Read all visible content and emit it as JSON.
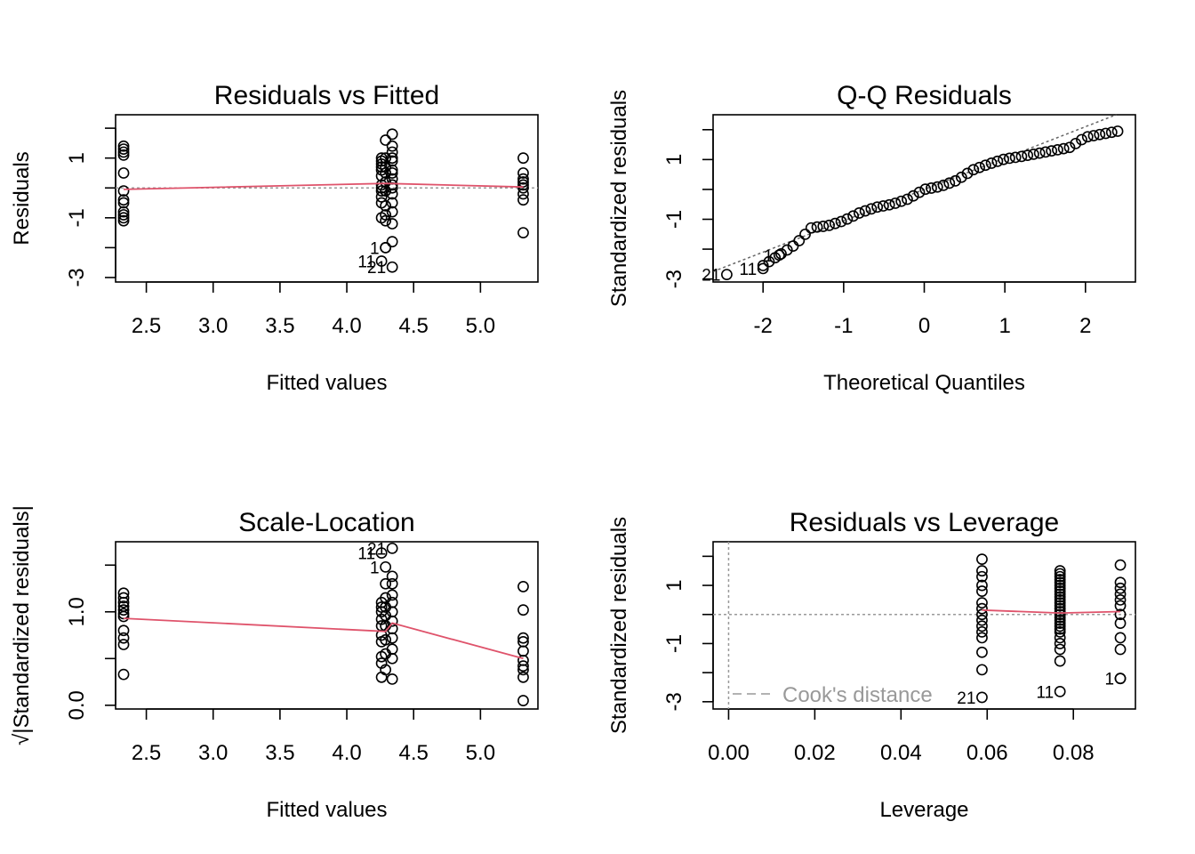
{
  "chart_data": [
    {
      "type": "scatter",
      "title": "Residuals vs Fitted",
      "xlabel": "Fitted values",
      "ylabel": "Residuals",
      "xlim": [
        2.27,
        5.43
      ],
      "ylim": [
        -3.15,
        2.45
      ],
      "xticks": [
        {
          "v": 2.5,
          "label": "2.5"
        },
        {
          "v": 3.0,
          "label": "3.0"
        },
        {
          "v": 3.5,
          "label": "3.5"
        },
        {
          "v": 4.0,
          "label": "4.0"
        },
        {
          "v": 4.5,
          "label": "4.5"
        },
        {
          "v": 5.0,
          "label": "5.0"
        }
      ],
      "yticks": [
        {
          "v": -3,
          "label": "-3"
        },
        {
          "v": -2,
          "label": ""
        },
        {
          "v": -1,
          "label": "-1"
        },
        {
          "v": 0,
          "label": ""
        },
        {
          "v": 1,
          "label": "1"
        },
        {
          "v": 2,
          "label": ""
        }
      ],
      "groups": [
        {
          "x": 2.33,
          "y": [
            1.4,
            1.3,
            1.2,
            1.1,
            0.5,
            -0.1,
            -0.4,
            -0.5,
            -0.8,
            -0.9,
            -1.0,
            -1.1
          ]
        },
        {
          "x": 4.26,
          "y": [
            1.0,
            0.9,
            0.8,
            0.7,
            0.6,
            0.4,
            0.1,
            0.0,
            -0.1,
            -0.3,
            -0.5,
            -1.0
          ]
        },
        {
          "x": 4.29,
          "y": [
            1.6,
            1.0,
            0.7,
            0.5,
            0.2,
            -0.1,
            -0.6,
            -0.9,
            -1.1,
            -2.0
          ]
        },
        {
          "x": 4.34,
          "y": [
            1.8,
            1.4,
            1.2,
            1.0,
            0.9,
            0.6,
            0.5,
            0.3,
            0.1,
            0.0,
            -0.2,
            -0.5,
            -0.8,
            -1.2,
            -1.8
          ]
        },
        {
          "x": 5.32,
          "y": [
            1.0,
            0.5,
            0.3,
            0.2,
            0.1,
            0.0,
            -0.2,
            -0.4,
            -1.5
          ]
        }
      ],
      "labeled_points": [
        {
          "x": 4.26,
          "y": -2.45,
          "label": "11"
        },
        {
          "x": 4.34,
          "y": -2.65,
          "label": "21"
        },
        {
          "x": 4.29,
          "y": -2.0,
          "label": "1"
        }
      ],
      "smoother": [
        [
          2.33,
          -0.05
        ],
        [
          4.29,
          0.15
        ],
        [
          5.32,
          0.03
        ]
      ],
      "refline": {
        "type": "h",
        "value": 0
      }
    },
    {
      "type": "scatter",
      "title": "Q-Q Residuals",
      "xlabel": "Theoretical Quantiles",
      "ylabel": "Standardized residuals",
      "xlim": [
        -2.62,
        2.62
      ],
      "ylim": [
        -3.1,
        2.5
      ],
      "xticks": [
        {
          "v": -2,
          "label": "-2"
        },
        {
          "v": -1,
          "label": "-1"
        },
        {
          "v": 0,
          "label": "0"
        },
        {
          "v": 1,
          "label": "1"
        },
        {
          "v": 2,
          "label": "2"
        }
      ],
      "yticks": [
        {
          "v": -3,
          "label": "-3"
        },
        {
          "v": -2,
          "label": ""
        },
        {
          "v": -1,
          "label": "-1"
        },
        {
          "v": 0,
          "label": ""
        },
        {
          "v": 1,
          "label": "1"
        },
        {
          "v": 2,
          "label": ""
        }
      ],
      "qq_points": 60,
      "qq_anchors": [
        [
          -2.0,
          -2.55
        ],
        [
          -1.8,
          -2.2
        ],
        [
          -1.6,
          -1.85
        ],
        [
          -1.4,
          -1.28
        ],
        [
          -1.2,
          -1.22
        ],
        [
          -1.0,
          -1.05
        ],
        [
          -0.8,
          -0.78
        ],
        [
          -0.6,
          -0.6
        ],
        [
          -0.4,
          -0.5
        ],
        [
          -0.2,
          -0.32
        ],
        [
          0.0,
          0.0
        ],
        [
          0.2,
          0.1
        ],
        [
          0.4,
          0.3
        ],
        [
          0.6,
          0.65
        ],
        [
          0.8,
          0.85
        ],
        [
          1.0,
          1.02
        ],
        [
          1.2,
          1.1
        ],
        [
          1.4,
          1.2
        ],
        [
          1.6,
          1.3
        ],
        [
          1.8,
          1.4
        ],
        [
          2.0,
          1.75
        ],
        [
          2.4,
          1.95
        ]
      ],
      "labeled_points": [
        {
          "x": -2.45,
          "y": -2.85,
          "label": "21"
        },
        {
          "x": -2.0,
          "y": -2.65,
          "label": "11"
        },
        {
          "x": -1.8,
          "y": -2.2,
          "label": "1"
        }
      ],
      "refline": {
        "type": "ab",
        "intercept": 0.0,
        "slope": 1.05
      }
    },
    {
      "type": "scatter",
      "title": "Scale-Location",
      "xlabel": "Fitted values",
      "ylabel": "√|Standardized residuals|",
      "ylabel_prefix": "√",
      "ylabel_core": "|Standardized residuals|",
      "xlim": [
        2.27,
        5.43
      ],
      "ylim": [
        -0.04,
        1.75
      ],
      "xticks": [
        {
          "v": 2.5,
          "label": "2.5"
        },
        {
          "v": 3.0,
          "label": "3.0"
        },
        {
          "v": 3.5,
          "label": "3.5"
        },
        {
          "v": 4.0,
          "label": "4.0"
        },
        {
          "v": 4.5,
          "label": "4.5"
        },
        {
          "v": 5.0,
          "label": "5.0"
        }
      ],
      "yticks": [
        {
          "v": 0.0,
          "label": "0.0"
        },
        {
          "v": 0.5,
          "label": ""
        },
        {
          "v": 1.0,
          "label": "1.0"
        },
        {
          "v": 1.5,
          "label": ""
        }
      ],
      "groups": [
        {
          "x": 2.33,
          "y": [
            1.2,
            1.15,
            1.1,
            1.06,
            1.02,
            0.98,
            0.95,
            0.8,
            0.72,
            0.65,
            0.33
          ]
        },
        {
          "x": 4.26,
          "y": [
            1.1,
            1.05,
            1.0,
            0.92,
            0.85,
            0.75,
            0.68,
            0.52,
            0.45,
            0.3
          ]
        },
        {
          "x": 4.29,
          "y": [
            1.3,
            1.15,
            1.05,
            0.96,
            0.85,
            0.7,
            0.55,
            0.38
          ]
        },
        {
          "x": 4.34,
          "y": [
            1.38,
            1.3,
            1.18,
            1.1,
            1.0,
            0.9,
            0.82,
            0.72,
            0.6,
            0.5,
            0.28
          ]
        },
        {
          "x": 5.32,
          "y": [
            1.27,
            1.02,
            0.72,
            0.68,
            0.58,
            0.48,
            0.42,
            0.38,
            0.3,
            0.05
          ]
        }
      ],
      "labeled_points": [
        {
          "x": 4.26,
          "y": 1.63,
          "label": "11"
        },
        {
          "x": 4.34,
          "y": 1.68,
          "label": "21"
        },
        {
          "x": 4.29,
          "y": 1.48,
          "label": "1"
        }
      ],
      "smoother": [
        [
          2.33,
          0.93
        ],
        [
          4.29,
          0.79
        ],
        [
          4.34,
          0.88
        ],
        [
          5.32,
          0.5
        ]
      ]
    },
    {
      "type": "scatter",
      "title": "Residuals vs Leverage",
      "xlabel": "Leverage",
      "ylabel": "Standardized residuals",
      "xlim": [
        -0.0036,
        0.0944
      ],
      "ylim": [
        -3.25,
        2.5
      ],
      "xticks": [
        {
          "v": 0.0,
          "label": "0.00"
        },
        {
          "v": 0.02,
          "label": "0.02"
        },
        {
          "v": 0.04,
          "label": "0.04"
        },
        {
          "v": 0.06,
          "label": "0.06"
        },
        {
          "v": 0.08,
          "label": "0.08"
        }
      ],
      "yticks": [
        {
          "v": -3,
          "label": "-3"
        },
        {
          "v": -2,
          "label": ""
        },
        {
          "v": -1,
          "label": "-1"
        },
        {
          "v": 0,
          "label": ""
        },
        {
          "v": 1,
          "label": "1"
        },
        {
          "v": 2,
          "label": ""
        }
      ],
      "groups": [
        {
          "x": 0.0588,
          "y": [
            1.9,
            1.5,
            1.3,
            1.0,
            0.8,
            0.4,
            0.2,
            0.0,
            -0.2,
            -0.4,
            -0.6,
            -0.8,
            -1.3,
            -1.9
          ]
        },
        {
          "x": 0.0769,
          "y": [
            1.5,
            1.4,
            1.3,
            1.2,
            1.1,
            1.0,
            0.9,
            0.8,
            0.7,
            0.6,
            0.5,
            0.4,
            0.3,
            0.2,
            0.1,
            0.0,
            -0.1,
            -0.2,
            -0.3,
            -0.4,
            -0.5,
            -0.6,
            -0.8,
            -1.0,
            -1.2,
            -1.6
          ]
        },
        {
          "x": 0.0909,
          "y": [
            1.7,
            1.1,
            0.9,
            0.7,
            0.5,
            0.3,
            0.0,
            -0.3,
            -0.8,
            -1.2,
            -2.2
          ]
        }
      ],
      "labeled_points": [
        {
          "x": 0.0588,
          "y": -2.85,
          "label": "21"
        },
        {
          "x": 0.0769,
          "y": -2.65,
          "label": "11"
        },
        {
          "x": 0.0909,
          "y": -2.2,
          "label": "1"
        }
      ],
      "smoother": [
        [
          0.0588,
          0.15
        ],
        [
          0.0769,
          0.05
        ],
        [
          0.0909,
          0.1
        ]
      ],
      "refline": {
        "type": "h",
        "value": 0
      },
      "vline": 0.0,
      "legend": {
        "label": "Cook's distance",
        "placement": "bottom-left"
      }
    }
  ],
  "colors": {
    "points": "#000000",
    "smoother": "#DF536B",
    "refline": "#999999",
    "qqline": "#666666"
  }
}
